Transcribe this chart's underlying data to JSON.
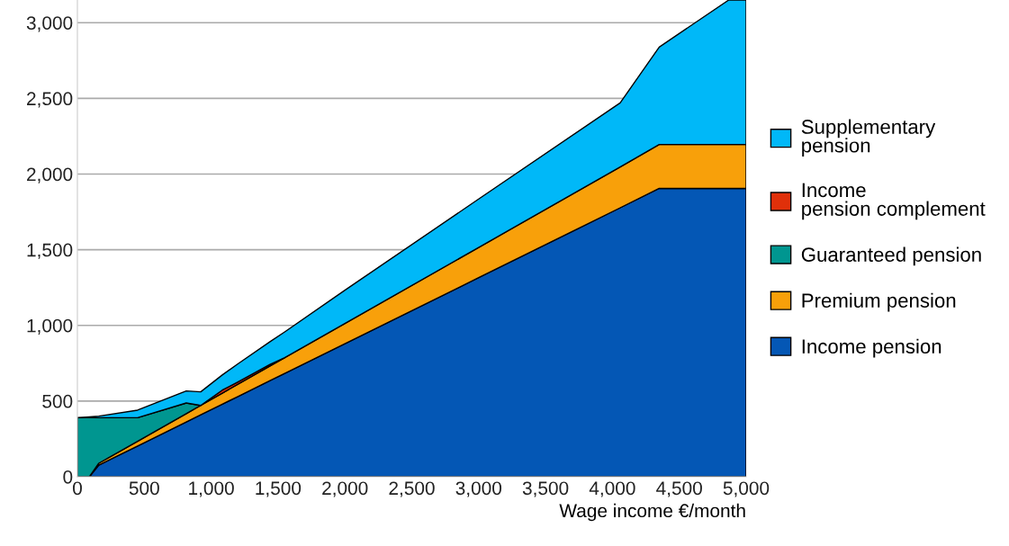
{
  "chart_data": {
    "type": "area",
    "stacked": true,
    "xlabel": "Wage income €/month",
    "x": [
      0,
      90,
      160,
      450,
      814,
      922,
      1083,
      1200,
      1440,
      1550,
      2000,
      3000,
      4058,
      4350,
      4870,
      5000
    ],
    "series": [
      {
        "name": "Income pension",
        "color": "#0457b5",
        "values": [
          0,
          0,
          77,
          203,
          362,
          409,
          479,
          530,
          635,
          683,
          879,
          1315,
          1777,
          1905,
          1905,
          1905
        ]
      },
      {
        "name": "Premium pension",
        "color": "#f8a00a",
        "values": [
          0,
          0,
          12,
          31,
          55,
          62,
          73,
          81,
          97,
          104,
          134,
          200,
          270,
          290,
          290,
          290
        ]
      },
      {
        "name": "Guaranteed pension",
        "color": "#009690",
        "values": [
          390,
          390,
          301,
          156,
          70,
          0,
          null,
          null,
          null,
          null,
          null,
          null,
          null,
          null,
          null,
          null
        ]
      },
      {
        "name": "Income pension complement",
        "color": "#e0300a",
        "values": [
          null,
          null,
          null,
          null,
          null,
          0,
          20,
          15,
          10,
          0,
          null,
          null,
          null,
          null,
          null,
          null
        ]
      },
      {
        "name": "Supplementary pension",
        "color": "#00b8f8",
        "values": [
          0,
          5,
          10,
          50,
          80,
          90,
          100,
          120,
          150,
          170,
          219,
          320,
          423,
          644,
          955,
          955
        ]
      }
    ],
    "xlim": [
      0,
      5000
    ],
    "ylim": [
      0,
      3150
    ],
    "xticks": [
      0,
      500,
      {
        "value": 1000,
        "label": "1,000"
      },
      {
        "value": 1500,
        "label": "1,500"
      },
      {
        "value": 2000,
        "label": "2,000"
      },
      {
        "value": 2500,
        "label": "2,500"
      },
      {
        "value": 3000,
        "label": "3,000"
      },
      {
        "value": 3500,
        "label": "3,500"
      },
      {
        "value": 4000,
        "label": "4,000"
      },
      {
        "value": 4500,
        "label": "4,500"
      },
      {
        "value": 5000,
        "label": "5,000"
      }
    ],
    "yticks": [
      0,
      500,
      {
        "value": 1000,
        "label": "1,000"
      },
      {
        "value": 1500,
        "label": "1,500"
      },
      {
        "value": 2000,
        "label": "2,000"
      },
      {
        "value": 2500,
        "label": "2,500"
      },
      {
        "value": 3000,
        "label": "3,000"
      }
    ],
    "grid": "y",
    "legend": "right"
  }
}
